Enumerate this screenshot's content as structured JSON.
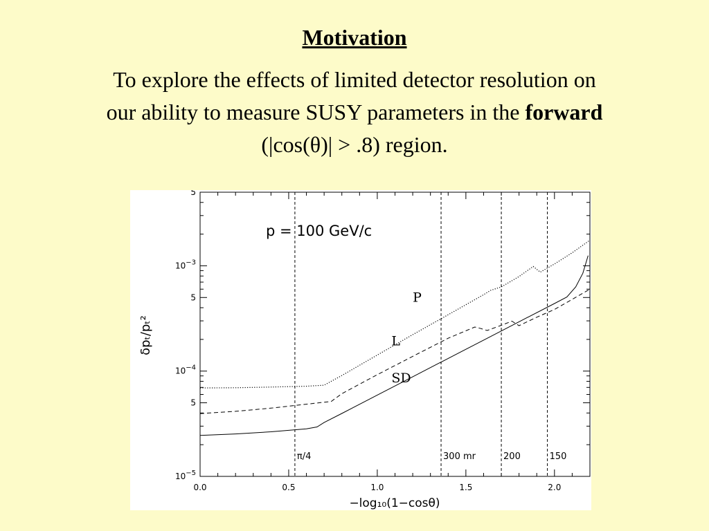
{
  "slide": {
    "title": "Motivation",
    "body_line1": "To explore the effects of limited detector resolution on",
    "body_line2_pre": "our ability to measure SUSY parameters in the ",
    "body_line2_bold": "forward",
    "body_line3": "(|cos(θ)| > .8) region."
  },
  "colors": {
    "background": "#fdfbc9",
    "plot_background": "#ffffff",
    "ink": "#000000"
  },
  "chart_data": {
    "type": "line",
    "title": "",
    "annotation": "p  =  100 GeV/c",
    "xlabel": "−log₁₀(1−cosθ)",
    "ylabel": "δpₜ/pₜ²",
    "xlim": [
      0,
      2.2
    ],
    "ylim": [
      1e-05,
      0.005
    ],
    "yscale": "log",
    "x_ticks": [
      "0.0",
      "0.5",
      "1.0",
      "1.5",
      "2.0"
    ],
    "y_ticks": [
      {
        "base": "10",
        "exp": "−5",
        "value": 1e-05
      },
      {
        "base": "5",
        "exp": "",
        "value": 5e-05
      },
      {
        "base": "10",
        "exp": "−4",
        "value": 0.0001
      },
      {
        "base": "5",
        "exp": "",
        "value": 0.0005
      },
      {
        "base": "10",
        "exp": "−3",
        "value": 0.001
      },
      {
        "base": "5",
        "exp": "",
        "value": 0.005
      }
    ],
    "vertical_markers": [
      {
        "x": 0.535,
        "label": "π/4"
      },
      {
        "x": 1.36,
        "label": "300 mr"
      },
      {
        "x": 1.7,
        "label": "200"
      },
      {
        "x": 1.96,
        "label": "150"
      }
    ],
    "series": [
      {
        "name": "SD",
        "style": "solid",
        "label_at": {
          "x": 1.08,
          "y": 7.8e-05
        },
        "points": [
          [
            0,
            2.45e-05
          ],
          [
            0.2,
            2.53e-05
          ],
          [
            0.4,
            2.65e-05
          ],
          [
            0.6,
            2.83e-05
          ],
          [
            0.66,
            2.95e-05
          ],
          [
            0.7,
            3.25e-05
          ],
          [
            0.8,
            3.96e-05
          ],
          [
            1.0,
            5.92e-05
          ],
          [
            1.2,
            8.83e-05
          ],
          [
            1.4,
            0.000132
          ],
          [
            1.6,
            0.000197
          ],
          [
            1.8,
            0.000294
          ],
          [
            2.0,
            0.000438
          ],
          [
            2.07,
            0.000505
          ],
          [
            2.12,
            0.00063
          ],
          [
            2.16,
            0.00085
          ],
          [
            2.19,
            0.00125
          ]
        ]
      },
      {
        "name": "L",
        "style": "dashed",
        "label_at": {
          "x": 1.08,
          "y": 0.000175
        },
        "points": [
          [
            0,
            3.95e-05
          ],
          [
            0.2,
            4.15e-05
          ],
          [
            0.4,
            4.45e-05
          ],
          [
            0.6,
            4.85e-05
          ],
          [
            0.74,
            5.15e-05
          ],
          [
            0.8,
            6.1e-05
          ],
          [
            1.0,
            9.25e-05
          ],
          [
            1.2,
            0.000138
          ],
          [
            1.4,
            0.000205
          ],
          [
            1.55,
            0.000262
          ],
          [
            1.58,
            0.000255
          ],
          [
            1.62,
            0.000243
          ],
          [
            1.7,
            0.000272
          ],
          [
            1.76,
            0.000298
          ],
          [
            1.8,
            0.00027
          ],
          [
            1.9,
            0.000325
          ],
          [
            2.0,
            0.000385
          ],
          [
            2.1,
            0.00048
          ],
          [
            2.2,
            0.0006
          ]
        ]
      },
      {
        "name": "P",
        "style": "dotted",
        "label_at": {
          "x": 1.2,
          "y": 0.000455
        },
        "points": [
          [
            0,
            6.92e-05
          ],
          [
            0.2,
            6.95e-05
          ],
          [
            0.4,
            7.05e-05
          ],
          [
            0.6,
            7.18e-05
          ],
          [
            0.7,
            7.35e-05
          ],
          [
            0.8,
            9.08e-05
          ],
          [
            1.0,
            0.000142
          ],
          [
            1.2,
            0.000222
          ],
          [
            1.4,
            0.000343
          ],
          [
            1.6,
            0.000532
          ],
          [
            1.64,
            0.000585
          ],
          [
            1.7,
            0.00063
          ],
          [
            1.8,
            0.00079
          ],
          [
            1.88,
            0.000985
          ],
          [
            1.92,
            0.00087
          ],
          [
            2.0,
            0.00104
          ],
          [
            2.1,
            0.00133
          ],
          [
            2.2,
            0.00175
          ]
        ]
      }
    ]
  }
}
